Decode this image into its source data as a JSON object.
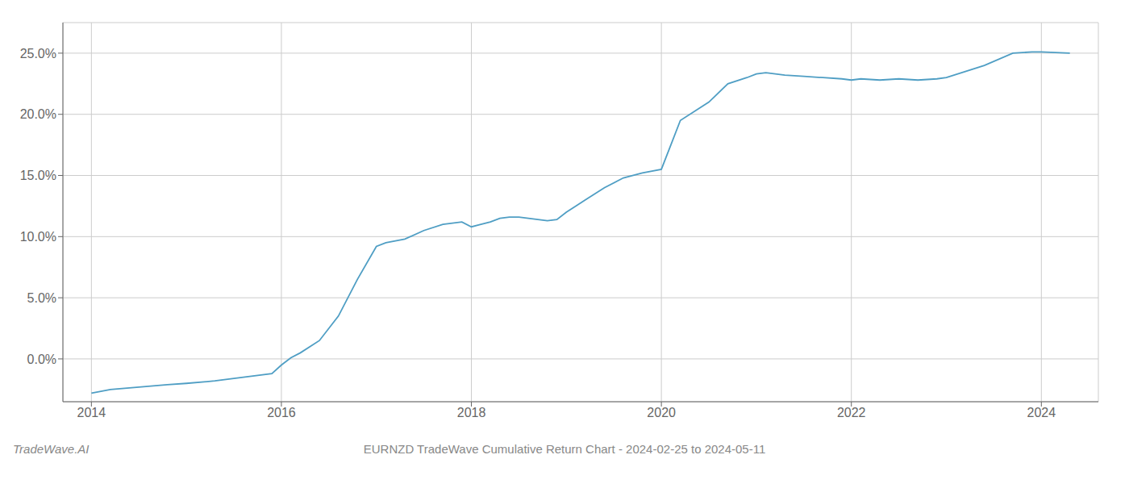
{
  "chart_data": {
    "type": "line",
    "title": "EURNZD TradeWave Cumulative Return Chart - 2024-02-25 to 2024-05-11",
    "annotations": [
      "TradeWave.AI"
    ],
    "color": "#4f9ec4",
    "grid": true,
    "x": [
      2014.0,
      2014.2,
      2014.5,
      2014.8,
      2015.0,
      2015.3,
      2015.6,
      2015.9,
      2016.0,
      2016.1,
      2016.2,
      2016.4,
      2016.6,
      2016.8,
      2017.0,
      2017.1,
      2017.3,
      2017.5,
      2017.7,
      2017.9,
      2018.0,
      2018.1,
      2018.2,
      2018.3,
      2018.4,
      2018.5,
      2018.6,
      2018.7,
      2018.8,
      2018.9,
      2019.0,
      2019.2,
      2019.4,
      2019.6,
      2019.8,
      2020.0,
      2020.1,
      2020.2,
      2020.5,
      2020.7,
      2020.9,
      2021.0,
      2021.1,
      2021.2,
      2021.3,
      2021.5,
      2021.7,
      2021.9,
      2022.0,
      2022.1,
      2022.3,
      2022.5,
      2022.7,
      2022.9,
      2023.0,
      2023.2,
      2023.4,
      2023.7,
      2023.9,
      2024.0,
      2024.3
    ],
    "values": [
      -2.8,
      -2.5,
      -2.3,
      -2.1,
      -2.0,
      -1.8,
      -1.5,
      -1.2,
      -0.5,
      0.1,
      0.5,
      1.5,
      3.5,
      6.5,
      9.2,
      9.5,
      9.8,
      10.5,
      11.0,
      11.2,
      10.8,
      11.0,
      11.2,
      11.5,
      11.6,
      11.6,
      11.5,
      11.4,
      11.3,
      11.4,
      12.0,
      13.0,
      14.0,
      14.8,
      15.2,
      15.5,
      17.5,
      19.5,
      21.0,
      22.5,
      23.0,
      23.3,
      23.4,
      23.3,
      23.2,
      23.1,
      23.0,
      22.9,
      22.8,
      22.9,
      22.8,
      22.9,
      22.8,
      22.9,
      23.0,
      23.5,
      24.0,
      25.0,
      25.1,
      25.1,
      25.0
    ],
    "xlim": [
      2013.7,
      2024.6
    ],
    "xticks": [
      2014,
      2016,
      2018,
      2020,
      2022,
      2024
    ],
    "ylim": [
      -3.5,
      27.5
    ],
    "yticks": [
      {
        "value": 0.0,
        "label": "0.0%"
      },
      {
        "value": 5.0,
        "label": "5.0%"
      },
      {
        "value": 10.0,
        "label": "10.0%"
      },
      {
        "value": 15.0,
        "label": "15.0%"
      },
      {
        "value": 20.0,
        "label": "20.0%"
      },
      {
        "value": 25.0,
        "label": "25.0%"
      }
    ]
  }
}
